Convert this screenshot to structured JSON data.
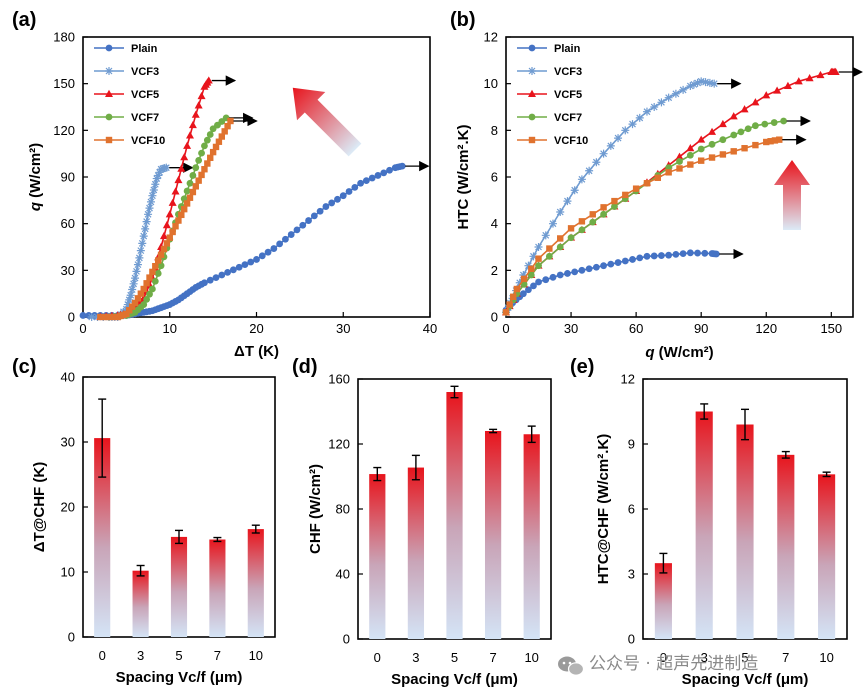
{
  "watermark": {
    "text": "公众号 · 超声先进制造",
    "icon": "wechat-icon"
  },
  "chart_data": [
    {
      "id": "a",
      "type": "line",
      "panel_label": "(a)",
      "xlabel": "ΔT (K)",
      "ylabel_main": "q",
      "ylabel_unit": " (W/cm²)",
      "xlim": [
        0,
        40
      ],
      "ylim": [
        0,
        180
      ],
      "xticks": [
        0,
        10,
        20,
        30,
        40
      ],
      "yticks": [
        0,
        30,
        60,
        90,
        120,
        150,
        180
      ],
      "legend_position": "top-left",
      "arrow_color": "#e03a3a",
      "series": [
        {
          "name": "Plain",
          "color": "#4472c4",
          "marker": "circle",
          "x": [
            0,
            2,
            4,
            5,
            6,
            7,
            8,
            9,
            10,
            11,
            12,
            13,
            14,
            16,
            18,
            20,
            22,
            24,
            26,
            28,
            30,
            32,
            34,
            36,
            36.8
          ],
          "y": [
            1,
            1,
            1,
            1,
            2,
            3,
            4,
            6,
            8,
            11,
            15,
            19,
            22,
            27,
            32,
            37,
            44,
            53,
            62,
            71,
            78,
            86,
            91,
            96,
            97
          ],
          "chf": [
            36.8,
            97
          ]
        },
        {
          "name": "VCF3",
          "color": "#6f9bd1",
          "marker": "star",
          "x": [
            1,
            3,
            4,
            5,
            5.5,
            6,
            6.5,
            7,
            7.5,
            8,
            8.5,
            9,
            9.6
          ],
          "y": [
            0,
            0,
            0,
            5,
            14,
            25,
            38,
            52,
            66,
            78,
            89,
            95,
            96
          ],
          "chf": [
            9.6,
            96
          ]
        },
        {
          "name": "VCF5",
          "color": "#e8141c",
          "marker": "triangle",
          "x": [
            2,
            4,
            5,
            6,
            7,
            8,
            9,
            10,
            11,
            12,
            13,
            14,
            14.5
          ],
          "y": [
            0,
            1,
            2,
            6,
            12,
            25,
            45,
            66,
            88,
            110,
            130,
            148,
            152
          ],
          "chf": [
            14.5,
            152
          ]
        },
        {
          "name": "VCF7",
          "color": "#70ad47",
          "marker": "circle",
          "x": [
            3,
            5,
            6,
            7,
            8,
            9,
            10,
            11,
            12,
            13,
            14,
            15,
            16.5
          ],
          "y": [
            0,
            1,
            3,
            8,
            18,
            33,
            50,
            66,
            81,
            96,
            110,
            121,
            128
          ],
          "chf": [
            16.5,
            128
          ]
        },
        {
          "name": "VCF10",
          "color": "#e0722e",
          "marker": "square",
          "x": [
            2,
            4,
            5,
            6,
            7,
            8,
            9,
            10,
            11,
            12,
            13,
            14,
            15,
            16,
            17
          ],
          "y": [
            0,
            0,
            2,
            9,
            18,
            29,
            40,
            51,
            62,
            73,
            84,
            95,
            106,
            116,
            126
          ],
          "chf": [
            17,
            126
          ]
        }
      ]
    },
    {
      "id": "b",
      "type": "line",
      "panel_label": "(b)",
      "xlabel_main": "q",
      "xlabel_unit": " (W/cm²)",
      "ylabel": "HTC (W/cm².K)",
      "xlim": [
        0,
        160
      ],
      "ylim": [
        0,
        12
      ],
      "xticks": [
        0,
        30,
        60,
        90,
        120,
        150
      ],
      "yticks": [
        0,
        2,
        4,
        6,
        8,
        10,
        12
      ],
      "legend_position": "top-left",
      "arrow_color": "#e03a3a",
      "series": [
        {
          "name": "Plain",
          "color": "#4472c4",
          "marker": "circle",
          "x": [
            0,
            3,
            8,
            15,
            25,
            35,
            45,
            55,
            65,
            75,
            85,
            95,
            97
          ],
          "y": [
            0.3,
            0.6,
            1.0,
            1.5,
            1.8,
            2.0,
            2.2,
            2.4,
            2.6,
            2.65,
            2.75,
            2.72,
            2.7
          ],
          "chf": [
            97,
            2.7
          ]
        },
        {
          "name": "VCF3",
          "color": "#6f9bd1",
          "marker": "star",
          "x": [
            0,
            3,
            8,
            15,
            25,
            35,
            45,
            55,
            65,
            75,
            85,
            90,
            96
          ],
          "y": [
            0.2,
            0.8,
            1.8,
            3.0,
            4.5,
            5.9,
            7.0,
            8.0,
            8.8,
            9.4,
            9.9,
            10.1,
            10.0
          ],
          "chf": [
            96,
            10.0
          ]
        },
        {
          "name": "VCF5",
          "color": "#e8141c",
          "marker": "triangle",
          "x": [
            0,
            5,
            15,
            30,
            45,
            60,
            75,
            90,
            105,
            120,
            135,
            150,
            152
          ],
          "y": [
            0.2,
            1.0,
            2.2,
            3.4,
            4.4,
            5.4,
            6.5,
            7.6,
            8.6,
            9.5,
            10.1,
            10.5,
            10.5
          ],
          "chf": [
            152,
            10.5
          ]
        },
        {
          "name": "VCF7",
          "color": "#70ad47",
          "marker": "circle",
          "x": [
            0,
            5,
            15,
            30,
            45,
            60,
            75,
            90,
            105,
            115,
            128
          ],
          "y": [
            0.2,
            1.0,
            2.2,
            3.4,
            4.4,
            5.4,
            6.4,
            7.2,
            7.8,
            8.2,
            8.4
          ],
          "chf": [
            128,
            8.4
          ]
        },
        {
          "name": "VCF10",
          "color": "#e0722e",
          "marker": "square",
          "x": [
            0,
            5,
            15,
            30,
            45,
            60,
            75,
            90,
            105,
            120,
            126
          ],
          "y": [
            0.2,
            1.2,
            2.5,
            3.8,
            4.7,
            5.5,
            6.2,
            6.7,
            7.1,
            7.5,
            7.6
          ],
          "chf": [
            126,
            7.6
          ]
        }
      ]
    },
    {
      "id": "c",
      "type": "bar",
      "panel_label": "(c)",
      "xlabel": "Spacing Vc/f (μm)",
      "ylabel": "ΔT@CHF (K)",
      "ylim": [
        0,
        40
      ],
      "yticks": [
        0,
        10,
        20,
        30,
        40
      ],
      "categories": [
        "0",
        "3",
        "5",
        "7",
        "10"
      ],
      "values": [
        30.6,
        10.2,
        15.4,
        15.0,
        16.6
      ],
      "errors": [
        6.0,
        0.8,
        1.0,
        0.3,
        0.6
      ],
      "bar_gradient": [
        "#e8141c",
        "#cfe0f5"
      ]
    },
    {
      "id": "d",
      "type": "bar",
      "panel_label": "(d)",
      "xlabel": "Spacing Vc/f (μm)",
      "ylabel": "CHF (W/cm²)",
      "ylim": [
        0,
        160
      ],
      "yticks": [
        0,
        40,
        80,
        120,
        160
      ],
      "categories": [
        "0",
        "3",
        "5",
        "7",
        "10"
      ],
      "values": [
        101.5,
        105.5,
        152.0,
        128.0,
        126.0
      ],
      "errors": [
        4.0,
        7.5,
        3.5,
        1.0,
        5.0
      ],
      "bar_gradient": [
        "#e8141c",
        "#cfe0f5"
      ]
    },
    {
      "id": "e",
      "type": "bar",
      "panel_label": "(e)",
      "xlabel": "Spacing Vc/f (μm)",
      "ylabel": "HTC@CHF (W/cm².K)",
      "ylim": [
        0,
        12
      ],
      "yticks": [
        0,
        3,
        6,
        9,
        12
      ],
      "categories": [
        "0",
        "3",
        "5",
        "7",
        "10"
      ],
      "values": [
        3.5,
        10.5,
        9.9,
        8.5,
        7.6
      ],
      "errors": [
        0.45,
        0.35,
        0.7,
        0.15,
        0.1
      ],
      "bar_gradient": [
        "#e8141c",
        "#cfe0f5"
      ]
    }
  ]
}
